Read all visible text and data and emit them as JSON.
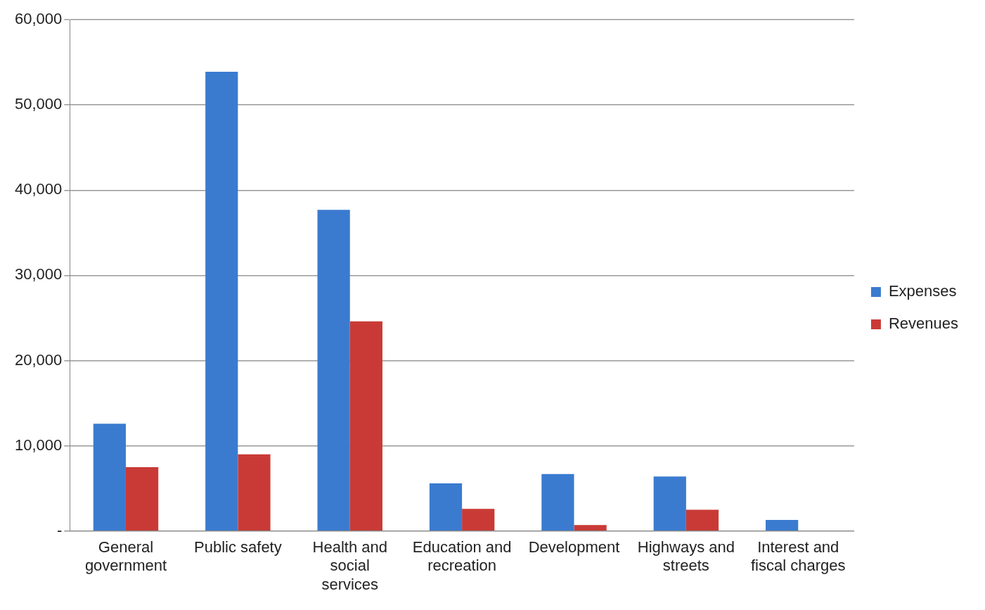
{
  "chart_data": {
    "type": "bar",
    "categories": [
      "General government",
      "Public safety",
      "Health and social services",
      "Education and recreation",
      "Development",
      "Highways and streets",
      "Interest and fiscal charges"
    ],
    "series": [
      {
        "name": "Expenses",
        "color": "#3a7bd0",
        "values": [
          12600,
          53900,
          37700,
          5600,
          6700,
          6400,
          1300
        ]
      },
      {
        "name": "Revenues",
        "color": "#c93a36",
        "values": [
          7500,
          9000,
          24600,
          2600,
          700,
          2500,
          null
        ]
      }
    ],
    "ylim": [
      0,
      60000
    ],
    "yticks": [
      {
        "value": 0,
        "label": "-"
      },
      {
        "value": 10000,
        "label": "10,000"
      },
      {
        "value": 20000,
        "label": "20,000"
      },
      {
        "value": 30000,
        "label": "30,000"
      },
      {
        "value": 40000,
        "label": "40,000"
      },
      {
        "value": 50000,
        "label": "50,000"
      },
      {
        "value": 60000,
        "label": "60,000"
      }
    ],
    "grid": "y",
    "legend": "right"
  }
}
